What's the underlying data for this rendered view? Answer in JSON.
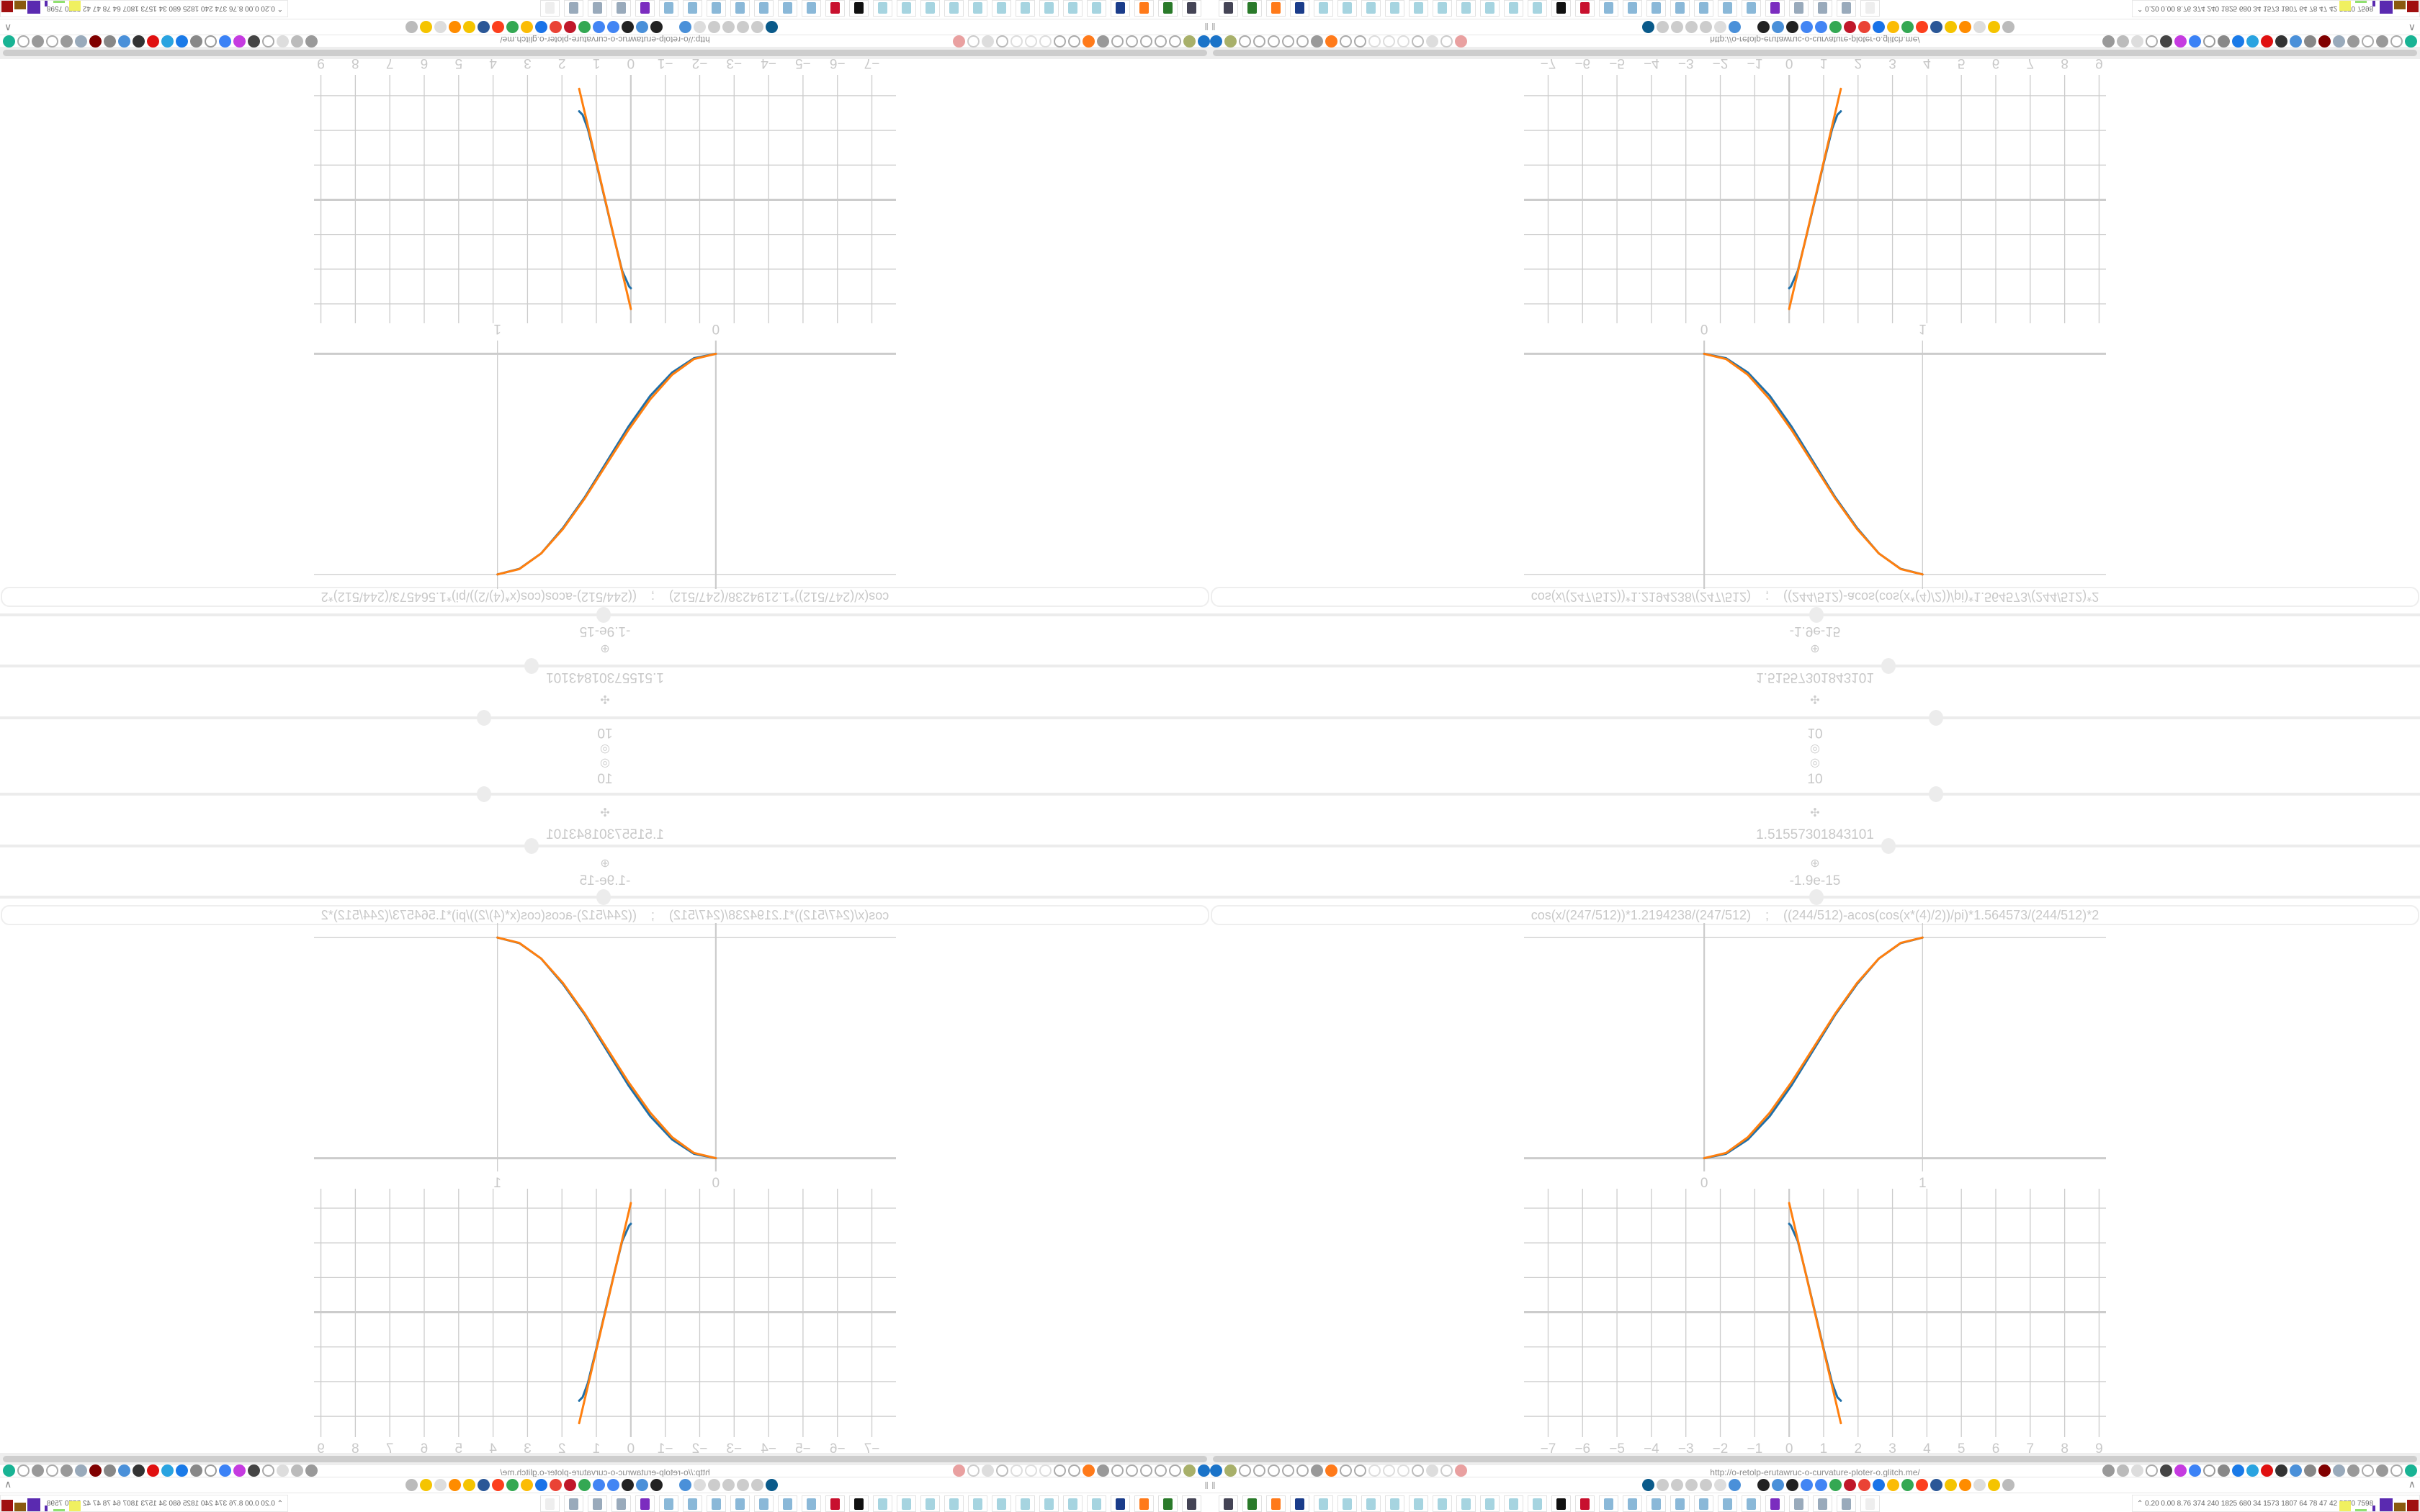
{
  "controls": [
    {
      "icon": "◎",
      "icon_name": "target-icon",
      "value": "10",
      "slider_fraction": 0.6
    },
    {
      "icon": "✣",
      "icon_name": "move-icon",
      "value": "1.51557301843101",
      "slider_fraction": 0.561
    },
    {
      "icon": "⊕",
      "icon_name": "crosshair-icon",
      "value": "-1.9e-15",
      "slider_fraction": 0.501
    }
  ],
  "formula": {
    "value": "cos(x/(247/512))*1.2194238/(247/512)    ;    ((244/512)-acos(cos(x*(4)/2))/pi)*1.564573/(244/512)*2"
  },
  "colors": {
    "series_blue": "#1f6fa8",
    "series_orange": "#ff7f0e",
    "grid": "#cccccc",
    "text": "#c8c8c8"
  },
  "chart_data": [
    {
      "type": "line",
      "x_ticks": [
        "0",
        "1"
      ],
      "x_tick_values": [
        0,
        1
      ],
      "y_gridlines": [
        0,
        1
      ],
      "xlim": [
        -0.825,
        1.84
      ],
      "ylim": [
        -0.06,
        1.066
      ],
      "grid": true,
      "series": [
        {
          "color": "#1f6fa8",
          "x": [
            0,
            0.1,
            0.2,
            0.3,
            0.4,
            0.5,
            0.6,
            0.7,
            0.8,
            0.9,
            1
          ],
          "y": [
            0,
            0.02,
            0.085,
            0.19,
            0.33,
            0.49,
            0.65,
            0.79,
            0.905,
            0.975,
            1
          ]
        },
        {
          "color": "#ff7f0e",
          "x": [
            0,
            0.1,
            0.2,
            0.3,
            0.4,
            0.5,
            0.6,
            0.7,
            0.8,
            0.9,
            1
          ],
          "y": [
            0,
            0.024,
            0.095,
            0.206,
            0.345,
            0.5,
            0.655,
            0.794,
            0.905,
            0.976,
            1
          ]
        }
      ]
    },
    {
      "type": "line",
      "x_ticks": [
        "−7",
        "−6",
        "−5",
        "−4",
        "−3",
        "−2",
        "−1",
        "0",
        "1",
        "2",
        "3",
        "4",
        "5",
        "6",
        "7",
        "8",
        "9"
      ],
      "x_tick_values": [
        -7,
        -6,
        -5,
        -4,
        -3,
        -2,
        -1,
        0,
        1,
        2,
        3,
        4,
        5,
        6,
        7,
        8,
        9
      ],
      "y_gridlines": [
        -3,
        -2,
        -1,
        0,
        1,
        2,
        3
      ],
      "xlim": [
        -7.7,
        9.2
      ],
      "ylim": [
        -3.6,
        3.56
      ],
      "grid": true,
      "series": [
        {
          "color": "#1f6fa8",
          "x": [
            0,
            0.05,
            0.25,
            0.5,
            0.75,
            1,
            1.25,
            1.4,
            1.5
          ],
          "y": [
            2.55,
            2.5,
            2.05,
            1.05,
            0,
            -1.05,
            -2.05,
            -2.45,
            -2.55
          ]
        },
        {
          "color": "#ff7f0e",
          "x": [
            0,
            1.5
          ],
          "y": [
            3.15,
            -3.2
          ]
        }
      ]
    }
  ],
  "browser": {
    "url": "http://o-retolp-erutawruc-o-curvature-ploter-o.glitch.me/",
    "stats": "0.20 0.00 8.76  374  240 1825 680   34  1573 1807  64   78   47   42  5770 7598",
    "left_icons": [
      {
        "name": "filter-icon",
        "color": "#1a73c8"
      },
      {
        "name": "olive-circle-icon",
        "color": "#a8b06a"
      },
      {
        "name": "globe-icon",
        "color": "#aaa",
        "ring": true
      },
      {
        "name": "globe-icon",
        "color": "#aaa",
        "ring": true
      },
      {
        "name": "headphones-icon",
        "color": "#aaa",
        "ring": true
      },
      {
        "name": "headphones-icon",
        "color": "#aaa",
        "ring": true
      },
      {
        "name": "globe-icon",
        "color": "#aaa",
        "ring": true
      },
      {
        "name": "wrench-icon",
        "color": "#999"
      },
      {
        "name": "firefox-icon",
        "color": "#ff7a1a"
      },
      {
        "name": "gear-icon",
        "color": "#aaa",
        "ring": true
      },
      {
        "name": "globe-icon",
        "color": "#aaa",
        "ring": true
      },
      {
        "name": "dot-icon",
        "color": "#ddd",
        "ring": true
      },
      {
        "name": "dot-icon",
        "color": "#ddd",
        "ring": true
      },
      {
        "name": "dot-icon",
        "color": "#ddd",
        "ring": true
      },
      {
        "name": "folder-icon",
        "color": "#bbb",
        "ring": true
      },
      {
        "name": "back-arrow-icon",
        "color": "#ddd"
      },
      {
        "name": "shield-icon",
        "color": "#ccc",
        "ring": true
      },
      {
        "name": "lock-slash-icon",
        "color": "#e9a0a0"
      }
    ],
    "right_icons": [
      {
        "name": "translate-icon",
        "color": "#999"
      },
      {
        "name": "star-icon",
        "color": "#bbb"
      },
      {
        "name": "forward-arrow-icon",
        "color": "#ddd"
      },
      {
        "name": "reload-icon",
        "color": "#aaa",
        "ring": true
      },
      {
        "name": "download-icon",
        "color": "#444"
      },
      {
        "name": "pen-icon",
        "color": "#c53be0"
      },
      {
        "name": "translate-blue-icon",
        "color": "#3b82f6"
      },
      {
        "name": "mouse-icon",
        "color": "#999",
        "ring": true
      },
      {
        "name": "gear-icon",
        "color": "#888"
      },
      {
        "name": "plus-icon",
        "color": "#1a7ae8"
      },
      {
        "name": "upload-icon",
        "color": "#29a3e0"
      },
      {
        "name": "record-icon",
        "color": "#e01010"
      },
      {
        "name": "trash-icon",
        "color": "#333"
      },
      {
        "name": "share-icon",
        "color": "#4a90d9"
      },
      {
        "name": "clipboard-icon",
        "color": "#888"
      },
      {
        "name": "ublock-icon",
        "color": "#800000"
      },
      {
        "name": "shield-icon",
        "color": "#99aabb"
      },
      {
        "name": "globe-icon",
        "color": "#999"
      },
      {
        "name": "puzzle-icon",
        "color": "#aaa",
        "ring": true
      },
      {
        "name": "wrench-icon",
        "color": "#999"
      },
      {
        "name": "gear-icon",
        "color": "#aaa",
        "ring": true
      },
      {
        "name": "status-dot-icon",
        "color": "#19b394"
      }
    ],
    "bookmark_icons": [
      {
        "name": "bookmark-icon",
        "color": "#0a5a8a"
      },
      {
        "name": "sound-icon",
        "color": "#ccc"
      },
      {
        "name": "cc-icon",
        "color": "#ccc"
      },
      {
        "name": "sound-icon",
        "color": "#ccc"
      },
      {
        "name": "sound-icon",
        "color": "#ccc"
      },
      {
        "name": "sound-icon",
        "color": "#ddd"
      },
      {
        "name": "bookmark-icon",
        "color": "#4a90d9"
      },
      {
        "name": "wikipedia-icon",
        "color": "#fff",
        "ring": true
      },
      {
        "name": "bookmark-icon",
        "color": "#222"
      },
      {
        "name": "bookmark-icon",
        "color": "#4a90d9"
      },
      {
        "name": "archive-icon",
        "color": "#222"
      },
      {
        "name": "translate-icon",
        "color": "#4285f4"
      },
      {
        "name": "google-icon",
        "color": "#4285f4"
      },
      {
        "name": "google-icon",
        "color": "#34a853"
      },
      {
        "name": "bookmark-icon",
        "color": "#c0182a"
      },
      {
        "name": "google-icon",
        "color": "#ea4335"
      },
      {
        "name": "bookmark-icon",
        "color": "#1a73e8"
      },
      {
        "name": "google-icon",
        "color": "#fbbc05"
      },
      {
        "name": "google-icon",
        "color": "#34a853"
      },
      {
        "name": "yandex-icon",
        "color": "#fc3f1d"
      },
      {
        "name": "grid-icon",
        "color": "#2b5797"
      },
      {
        "name": "image-icon",
        "color": "#f5c400"
      },
      {
        "name": "sun-icon",
        "color": "#ff8c00"
      },
      {
        "name": "cc-icon",
        "color": "#ddd"
      },
      {
        "name": "image-icon",
        "color": "#f5c400"
      },
      {
        "name": "hourglass-icon",
        "color": "#bbb"
      }
    ],
    "taskbar_icons": [
      {
        "name": "monitor-icon",
        "color": "#445"
      },
      {
        "name": "terminal-icon",
        "color": "#2a7a2a"
      },
      {
        "name": "firefox-icon",
        "color": "#ff7a1a"
      },
      {
        "name": "floppy-icon",
        "color": "#1a3c8a"
      },
      {
        "name": "notepad-icon",
        "color": "#a6d4e0"
      },
      {
        "name": "notepad-icon",
        "color": "#a6d4e0"
      },
      {
        "name": "notepad-icon",
        "color": "#a6d4e0"
      },
      {
        "name": "notepad-icon",
        "color": "#a6d4e0"
      },
      {
        "name": "notepad-icon",
        "color": "#a6d4e0"
      },
      {
        "name": "notepad-icon",
        "color": "#a6d4e0"
      },
      {
        "name": "notepad-icon",
        "color": "#a6d4e0"
      },
      {
        "name": "notepad-icon",
        "color": "#a6d4e0"
      },
      {
        "name": "notepad-icon",
        "color": "#a6d4e0"
      },
      {
        "name": "notepad-icon",
        "color": "#a6d4e0"
      },
      {
        "name": "inkscape-icon",
        "color": "#111"
      },
      {
        "name": "app-red-icon",
        "color": "#c8102e"
      },
      {
        "name": "calculator-icon",
        "color": "#8ab8d8"
      },
      {
        "name": "calculator-icon",
        "color": "#8ab8d8"
      },
      {
        "name": "calculator-icon",
        "color": "#8ab8d8"
      },
      {
        "name": "calculator-icon",
        "color": "#8ab8d8"
      },
      {
        "name": "calculator-icon",
        "color": "#8ab8d8"
      },
      {
        "name": "calculator-icon",
        "color": "#8ab8d8"
      },
      {
        "name": "calculator-icon",
        "color": "#8ab8d8"
      },
      {
        "name": "app-purple-icon",
        "color": "#7b2cbf"
      },
      {
        "name": "script-icon",
        "color": "#9ab"
      },
      {
        "name": "script-icon",
        "color": "#9ab"
      },
      {
        "name": "script-icon",
        "color": "#9ab"
      },
      {
        "name": "blank-app-icon",
        "color": "#eee"
      }
    ]
  }
}
